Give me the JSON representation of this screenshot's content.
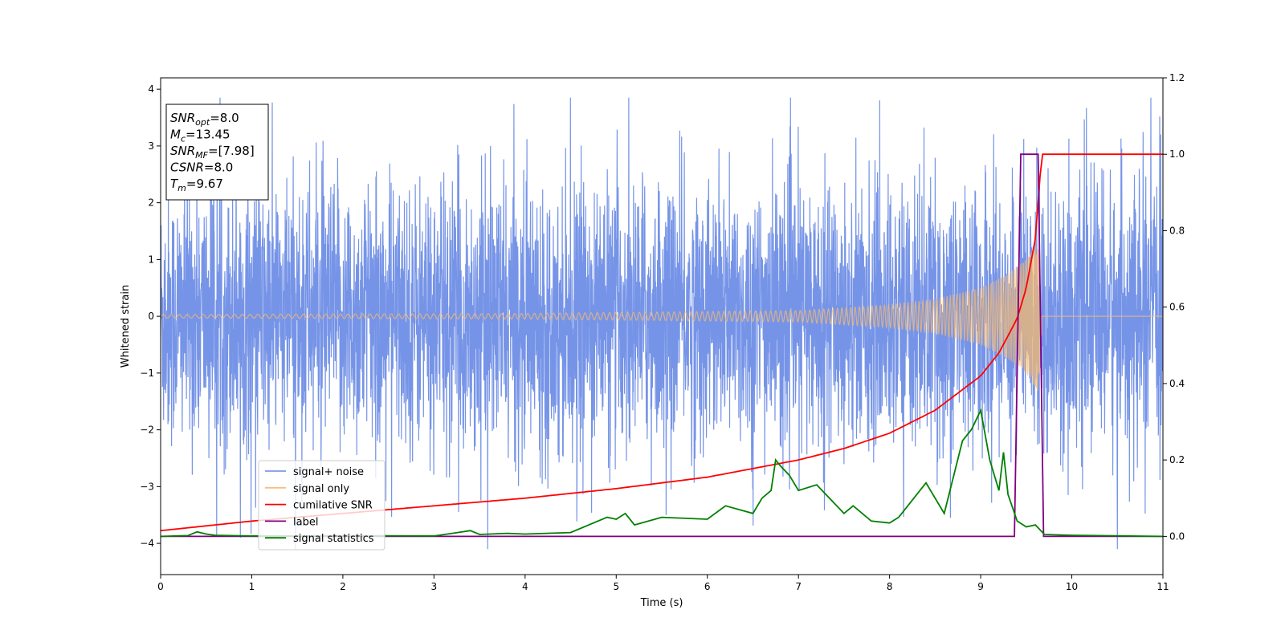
{
  "chart_data": {
    "type": "line",
    "xlabel": "Time (s)",
    "ylabel": "Whitened strain",
    "xlim": [
      0,
      11
    ],
    "ylim_left": [
      -4.55,
      4.2
    ],
    "ylim_right": [
      -0.1,
      1.2
    ],
    "x_ticks": [
      "0",
      "1",
      "2",
      "3",
      "4",
      "5",
      "6",
      "7",
      "8",
      "9",
      "10",
      "11"
    ],
    "y_left_ticks": [
      "−4",
      "−3",
      "−2",
      "−1",
      "0",
      "1",
      "2",
      "3",
      "4"
    ],
    "y_right_ticks": [
      "0.0",
      "0.2",
      "0.4",
      "0.6",
      "0.8",
      "1.0",
      "1.2"
    ],
    "grid": false,
    "legend_position": "lower-left",
    "series": [
      {
        "name": "signal+ noise",
        "axis": "left",
        "color": "#6f8ee6",
        "description_values": "noise envelope roughly ±2.5 with spikes to about ±4"
      },
      {
        "name": "signal only",
        "axis": "left",
        "color": "#f5b971",
        "amplitude_points": [
          [
            0,
            0.03
          ],
          [
            4,
            0.05
          ],
          [
            7,
            0.1
          ],
          [
            8,
            0.2
          ],
          [
            8.5,
            0.3
          ],
          [
            9,
            0.5
          ],
          [
            9.3,
            0.75
          ],
          [
            9.5,
            1.0
          ],
          [
            9.62,
            1.3
          ],
          [
            9.67,
            1.45
          ]
        ],
        "merger_time": 9.67
      },
      {
        "name": "cumilative SNR",
        "axis": "right",
        "color": "#ff0000",
        "points": [
          [
            0,
            0.015
          ],
          [
            1,
            0.04
          ],
          [
            2,
            0.06
          ],
          [
            3,
            0.08
          ],
          [
            4,
            0.1
          ],
          [
            5,
            0.125
          ],
          [
            6,
            0.155
          ],
          [
            7,
            0.2
          ],
          [
            7.5,
            0.23
          ],
          [
            8,
            0.27
          ],
          [
            8.5,
            0.33
          ],
          [
            9,
            0.42
          ],
          [
            9.2,
            0.48
          ],
          [
            9.4,
            0.57
          ],
          [
            9.5,
            0.65
          ],
          [
            9.6,
            0.78
          ],
          [
            9.67,
            1.0
          ],
          [
            11,
            1.0
          ]
        ]
      },
      {
        "name": "label",
        "axis": "right",
        "color": "#800080",
        "points": [
          [
            0,
            0.0
          ],
          [
            9.37,
            0.0
          ],
          [
            9.44,
            1.0
          ],
          [
            9.63,
            1.0
          ],
          [
            9.69,
            0.0
          ],
          [
            11,
            0.0
          ]
        ]
      },
      {
        "name": "signal statistics",
        "axis": "right",
        "color": "#008000",
        "points": [
          [
            0,
            0.0
          ],
          [
            0.3,
            0.002
          ],
          [
            0.4,
            0.012
          ],
          [
            0.5,
            0.006
          ],
          [
            0.6,
            0.003
          ],
          [
            1.0,
            0.001
          ],
          [
            2.0,
            0.002
          ],
          [
            3.0,
            0.001
          ],
          [
            3.2,
            0.008
          ],
          [
            3.4,
            0.015
          ],
          [
            3.5,
            0.005
          ],
          [
            3.8,
            0.008
          ],
          [
            4.0,
            0.006
          ],
          [
            4.5,
            0.01
          ],
          [
            4.9,
            0.05
          ],
          [
            5.0,
            0.045
          ],
          [
            5.1,
            0.06
          ],
          [
            5.2,
            0.03
          ],
          [
            5.5,
            0.05
          ],
          [
            6.0,
            0.045
          ],
          [
            6.2,
            0.08
          ],
          [
            6.5,
            0.06
          ],
          [
            6.6,
            0.1
          ],
          [
            6.7,
            0.12
          ],
          [
            6.75,
            0.2
          ],
          [
            6.8,
            0.185
          ],
          [
            6.9,
            0.16
          ],
          [
            7.0,
            0.12
          ],
          [
            7.2,
            0.135
          ],
          [
            7.3,
            0.11
          ],
          [
            7.5,
            0.06
          ],
          [
            7.6,
            0.08
          ],
          [
            7.8,
            0.04
          ],
          [
            8.0,
            0.035
          ],
          [
            8.1,
            0.05
          ],
          [
            8.4,
            0.14
          ],
          [
            8.6,
            0.06
          ],
          [
            8.8,
            0.25
          ],
          [
            8.9,
            0.28
          ],
          [
            9.0,
            0.33
          ],
          [
            9.1,
            0.2
          ],
          [
            9.2,
            0.12
          ],
          [
            9.25,
            0.22
          ],
          [
            9.3,
            0.11
          ],
          [
            9.4,
            0.04
          ],
          [
            9.5,
            0.025
          ],
          [
            9.6,
            0.03
          ],
          [
            9.7,
            0.005
          ],
          [
            10.0,
            0.003
          ],
          [
            11.0,
            0.0
          ]
        ]
      }
    ],
    "annotation": {
      "lines": [
        {
          "var": "SNR",
          "sub": "opt",
          "value": "=8.0"
        },
        {
          "var": "M",
          "sub": "c",
          "value": "=13.45"
        },
        {
          "var": "SNR",
          "sub": "MF",
          "value": "=[7.98]"
        },
        {
          "var": "CSNR",
          "sub": "",
          "value": "=8.0"
        },
        {
          "var": "T",
          "sub": "m",
          "value": "=9.67"
        }
      ]
    }
  }
}
